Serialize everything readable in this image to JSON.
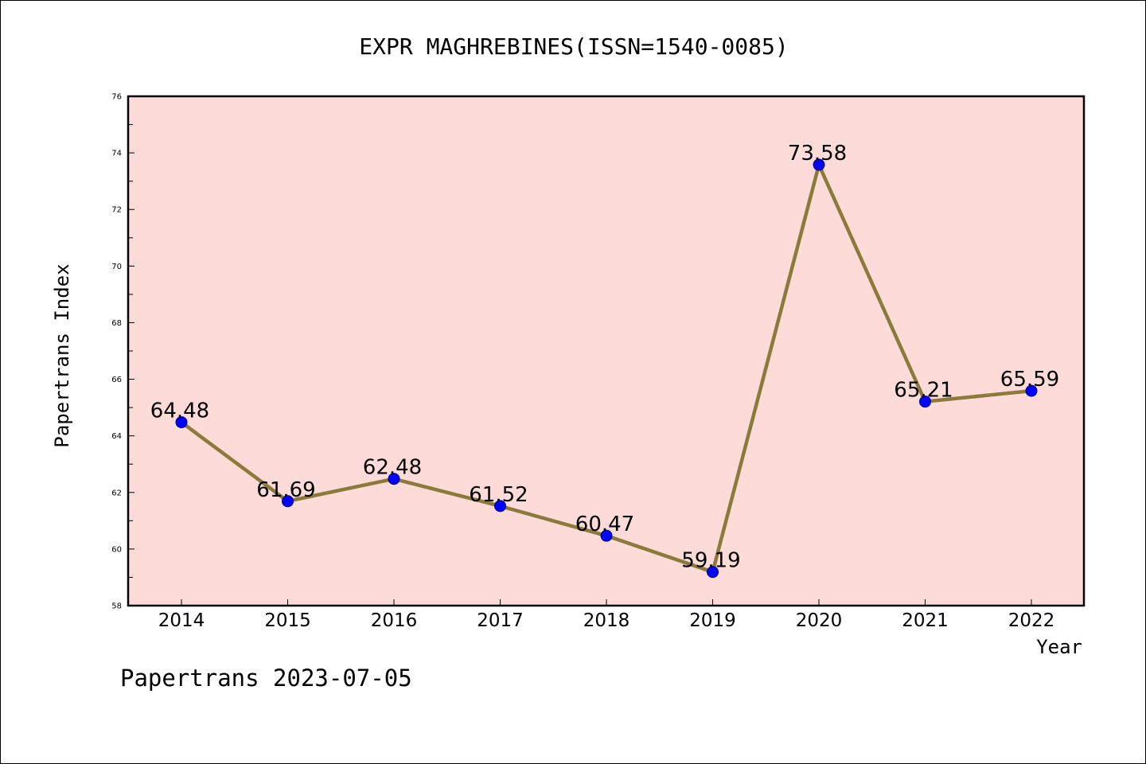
{
  "chart_data": {
    "type": "line",
    "title": "EXPR MAGHREBINES(ISSN=1540-0085)",
    "xlabel": "Year",
    "ylabel": "Papertrans Index",
    "categories": [
      "2014",
      "2015",
      "2016",
      "2017",
      "2018",
      "2019",
      "2020",
      "2021",
      "2022"
    ],
    "series": [
      {
        "values": [
          64.48,
          61.69,
          62.48,
          61.52,
          60.47,
          59.19,
          73.58,
          65.21,
          65.59
        ],
        "data_labels": [
          "64.48",
          "61.69",
          "62.48",
          "61.52",
          "60.47",
          "59.19",
          "73.58",
          "65.21",
          "65.59"
        ]
      }
    ],
    "ylim": [
      58,
      76
    ],
    "yticks": [
      "58",
      "60",
      "62",
      "64",
      "66",
      "68",
      "70",
      "72",
      "74",
      "76"
    ],
    "grid": false,
    "legend": "none",
    "colors": {
      "plot_background": "#fddbd8",
      "line": "#8b7a3a",
      "marker": "#0000ff",
      "marker_edge": "#000080",
      "axis": "#000000"
    }
  },
  "footer": "Papertrans 2023-07-05"
}
